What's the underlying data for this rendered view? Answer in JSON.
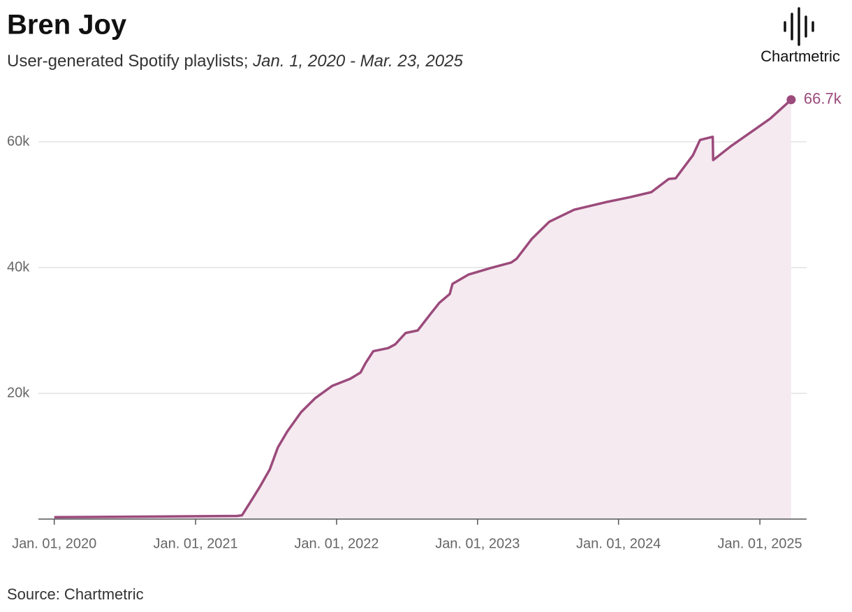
{
  "brand": "Chartmetric",
  "source": "Source: Chartmetric",
  "chart_data": {
    "type": "area",
    "title": "Bren Joy",
    "subtitle": "User-generated Spotify playlists; ",
    "subtitle_range": "Jan. 1, 2020 - Mar. 23, 2025",
    "annotation": "66.7k",
    "color": "#9b4a7b",
    "fill": "#f5eaf0",
    "grid": true,
    "xlim": [
      "2019-11-21",
      "2025-05-02"
    ],
    "ylim": [
      0,
      68000
    ],
    "xticks": [
      {
        "value": "2020-01-01",
        "label": "Jan. 01, 2020"
      },
      {
        "value": "2021-01-01",
        "label": "Jan. 01, 2021"
      },
      {
        "value": "2022-01-01",
        "label": "Jan. 01, 2022"
      },
      {
        "value": "2023-01-01",
        "label": "Jan. 01, 2023"
      },
      {
        "value": "2024-01-01",
        "label": "Jan. 01, 2024"
      },
      {
        "value": "2025-01-01",
        "label": "Jan. 01, 2025"
      }
    ],
    "yticks": [
      {
        "value": 20000,
        "label": "20k"
      },
      {
        "value": 40000,
        "label": "40k"
      },
      {
        "value": 60000,
        "label": "60k"
      }
    ],
    "x": [
      "2020-01-01",
      "2021-04-18",
      "2021-05-01",
      "2021-05-27",
      "2021-06-18",
      "2021-07-12",
      "2021-08-02",
      "2021-08-26",
      "2021-10-01",
      "2021-11-06",
      "2021-12-21",
      "2022-02-05",
      "2022-03-04",
      "2022-03-17",
      "2022-04-06",
      "2022-05-15",
      "2022-06-02",
      "2022-06-29",
      "2022-07-30",
      "2022-09-01",
      "2022-09-24",
      "2022-10-21",
      "2022-10-28",
      "2022-12-09",
      "2023-02-02",
      "2023-03-29",
      "2023-04-12",
      "2023-05-22",
      "2023-07-06",
      "2023-09-08",
      "2023-11-29",
      "2024-01-31",
      "2024-03-26",
      "2024-05-10",
      "2024-05-28",
      "2024-07-12",
      "2024-07-30",
      "2024-09-01",
      "2024-09-02",
      "2024-10-20",
      "2024-12-22",
      "2025-01-28",
      "2025-03-23"
    ],
    "values": [
      300,
      500,
      600,
      3100,
      5300,
      7900,
      11400,
      13900,
      17000,
      19200,
      21200,
      22300,
      23300,
      24800,
      26700,
      27200,
      27800,
      29600,
      30000,
      32600,
      34400,
      35800,
      37400,
      38900,
      39900,
      40800,
      41400,
      44600,
      47300,
      49200,
      50400,
      51200,
      52000,
      54100,
      54200,
      57900,
      60300,
      60800,
      57100,
      59400,
      62100,
      63700,
      66700
    ]
  }
}
